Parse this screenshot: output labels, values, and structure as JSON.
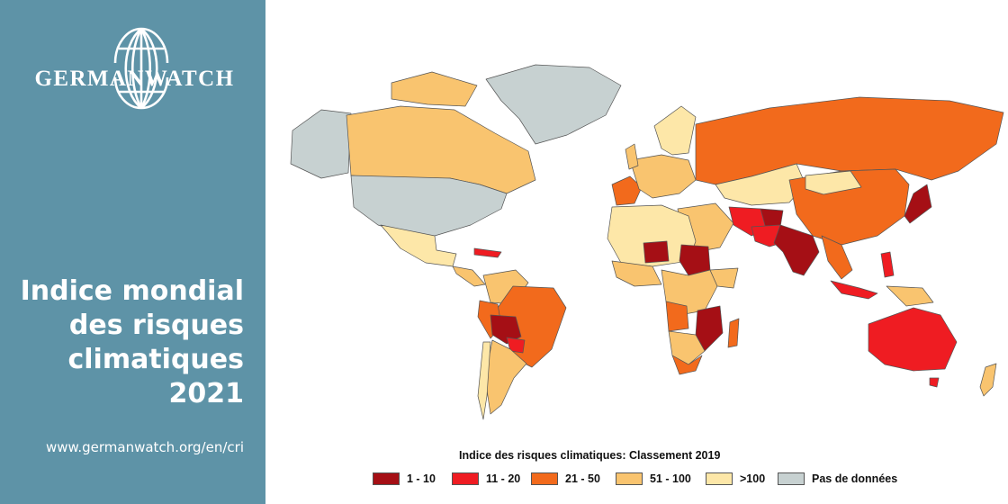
{
  "brand": {
    "name": "GERMANWATCH",
    "url": "www.germanwatch.org/en/cri"
  },
  "title_lines": [
    "Indice mondial",
    "des risques",
    "climatiques",
    "2021"
  ],
  "map": {
    "legend_title": "Indice des risques climatiques: Classement 2019",
    "legend": [
      {
        "label": "1 - 10",
        "color": "#a50f15"
      },
      {
        "label": "11 - 20",
        "color": "#ef1c22"
      },
      {
        "label": "21 - 50",
        "color": "#f26a1c"
      },
      {
        "label": "51 - 100",
        "color": "#f9c46f"
      },
      {
        "label": ">100",
        "color": "#fde7a8"
      },
      {
        "label": "Pas de données",
        "color": "#c7d1d1"
      }
    ]
  },
  "colors": {
    "sidebar_bg": "#5e93a7",
    "ocean": "#ffffff",
    "border": "#555555"
  }
}
